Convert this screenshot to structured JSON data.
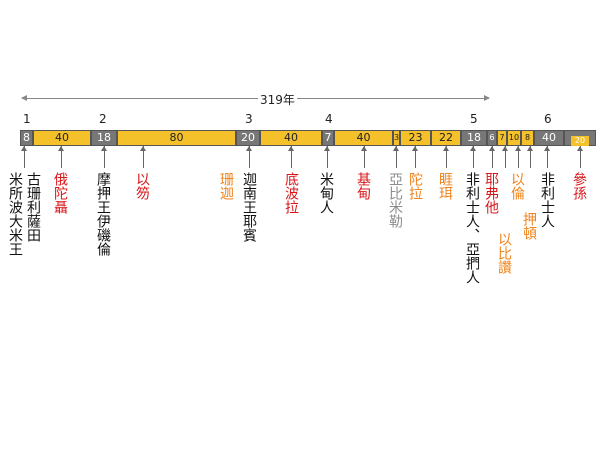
{
  "timeline": {
    "total_span": "319年",
    "era_numbers": [
      "1",
      "2",
      "3",
      "4",
      "5",
      "6"
    ],
    "segments": [
      {
        "value": "8",
        "color": "gray"
      },
      {
        "value": "40",
        "color": "yellow"
      },
      {
        "value": "18",
        "color": "gray"
      },
      {
        "value": "80",
        "color": "yellow"
      },
      {
        "value": "20",
        "color": "gray"
      },
      {
        "value": "40",
        "color": "yellow"
      },
      {
        "value": "7",
        "color": "gray"
      },
      {
        "value": "40",
        "color": "yellow"
      },
      {
        "value": "3",
        "color": "yellow"
      },
      {
        "value": "23",
        "color": "yellow"
      },
      {
        "value": "22",
        "color": "yellow"
      },
      {
        "value": "18",
        "color": "gray"
      },
      {
        "value": "6",
        "color": "gray"
      },
      {
        "value": "7",
        "color": "yellow"
      },
      {
        "value": "10",
        "color": "yellow"
      },
      {
        "value": "8",
        "color": "yellow"
      },
      {
        "value": "40",
        "color": "gray"
      },
      {
        "value": "20",
        "color": "yellow"
      }
    ],
    "judges": [
      {
        "name": "米所波大米王",
        "color": "#111111"
      },
      {
        "name": "古珊利薩田",
        "color": "#111111"
      },
      {
        "name": "俄陀聶",
        "color": "#d9161a"
      },
      {
        "name": "摩押王伊磯倫",
        "color": "#111111"
      },
      {
        "name": "以笏",
        "color": "#d9161a"
      },
      {
        "name": "珊迦",
        "color": "#f0841e"
      },
      {
        "name": "迦南王耶賓",
        "color": "#111111"
      },
      {
        "name": "底波拉",
        "color": "#d9161a"
      },
      {
        "name": "米甸人",
        "color": "#111111"
      },
      {
        "name": "基甸",
        "color": "#d9161a"
      },
      {
        "name": "亞比米勒",
        "color": "#8c8c8c"
      },
      {
        "name": "陀拉",
        "color": "#f0841e"
      },
      {
        "name": "睚珥",
        "color": "#f0841e"
      },
      {
        "name": "非利士人、亞捫人",
        "color": "#111111"
      },
      {
        "name": "耶弗他",
        "color": "#d9161a"
      },
      {
        "name": "以比讚",
        "color": "#f0841e"
      },
      {
        "name": "以倫",
        "color": "#f0841e"
      },
      {
        "name": "押頓",
        "color": "#f0841e"
      },
      {
        "name": "非利士人",
        "color": "#111111"
      },
      {
        "name": "參孫",
        "color": "#d9161a"
      }
    ]
  }
}
